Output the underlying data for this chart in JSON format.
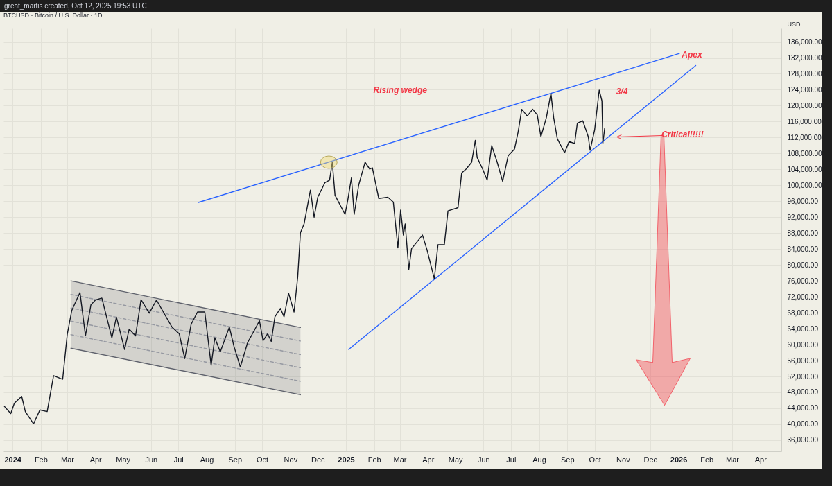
{
  "chart_data": {
    "type": "line",
    "title": "BTCUSD · Bitcoin / U.S. Dollar · 1D",
    "ylabel": "USD",
    "annotations": [
      "great_martis created, Oct 12, 2025 19:53 UTC",
      "Rising wedge",
      "3/4",
      "Apex",
      "Critical!!!!!"
    ],
    "xlim": [
      "2023-12-22",
      "2026-04-24"
    ],
    "ylim": [
      33200,
      139400
    ],
    "xticks": [
      {
        "value": "2024-01",
        "label": "2024"
      },
      {
        "value": "2024-02",
        "label": "Feb"
      },
      {
        "value": "2024-03",
        "label": "Mar"
      },
      {
        "value": "2024-04",
        "label": "Apr"
      },
      {
        "value": "2024-05",
        "label": "May"
      },
      {
        "value": "2024-06",
        "label": "Jun"
      },
      {
        "value": "2024-07",
        "label": "Jul"
      },
      {
        "value": "2024-08",
        "label": "Aug"
      },
      {
        "value": "2024-09",
        "label": "Sep"
      },
      {
        "value": "2024-10",
        "label": "Oct"
      },
      {
        "value": "2024-11",
        "label": "Nov"
      },
      {
        "value": "2024-12",
        "label": "Dec"
      },
      {
        "value": "2025-01",
        "label": "2025"
      },
      {
        "value": "2025-02",
        "label": "Feb"
      },
      {
        "value": "2025-03",
        "label": "Mar"
      },
      {
        "value": "2025-04",
        "label": "Apr"
      },
      {
        "value": "2025-05",
        "label": "May"
      },
      {
        "value": "2025-06",
        "label": "Jun"
      },
      {
        "value": "2025-07",
        "label": "Jul"
      },
      {
        "value": "2025-08",
        "label": "Aug"
      },
      {
        "value": "2025-09",
        "label": "Sep"
      },
      {
        "value": "2025-10",
        "label": "Oct"
      },
      {
        "value": "2025-11",
        "label": "Nov"
      },
      {
        "value": "2025-12",
        "label": "Dec"
      },
      {
        "value": "2026-01",
        "label": "2026"
      },
      {
        "value": "2026-02",
        "label": "Feb"
      },
      {
        "value": "2026-03",
        "label": "Mar"
      },
      {
        "value": "2026-04",
        "label": "Apr"
      }
    ],
    "yticks": [
      {
        "value": 36000,
        "label": "36,000.00"
      },
      {
        "value": 40000,
        "label": "40,000.00"
      },
      {
        "value": 44000,
        "label": "44,000.00"
      },
      {
        "value": 48000,
        "label": "48,000.00"
      },
      {
        "value": 52000,
        "label": "52,000.00"
      },
      {
        "value": 56000,
        "label": "56,000.00"
      },
      {
        "value": 60000,
        "label": "60,000.00"
      },
      {
        "value": 64000,
        "label": "64,000.00"
      },
      {
        "value": 68000,
        "label": "68,000.00"
      },
      {
        "value": 72000,
        "label": "72,000.00"
      },
      {
        "value": 76000,
        "label": "76,000.00"
      },
      {
        "value": 80000,
        "label": "80,000.00"
      },
      {
        "value": 84000,
        "label": "84,000.00"
      },
      {
        "value": 88000,
        "label": "88,000.00"
      },
      {
        "value": 92000,
        "label": "92,000.00"
      },
      {
        "value": 96000,
        "label": "96,000.00"
      },
      {
        "value": 100000,
        "label": "100,000.00"
      },
      {
        "value": 104000,
        "label": "104,000.00"
      },
      {
        "value": 108000,
        "label": "108,000.00"
      },
      {
        "value": 112000,
        "label": "112,000.00"
      },
      {
        "value": 116000,
        "label": "116,000.00"
      },
      {
        "value": 120000,
        "label": "120,000.00"
      },
      {
        "value": 124000,
        "label": "124,000.00"
      },
      {
        "value": 128000,
        "label": "128,000.00"
      },
      {
        "value": 132000,
        "label": "132,000.00"
      },
      {
        "value": 136000,
        "label": "136,000.00"
      }
    ],
    "grid": true,
    "series": [
      {
        "type": "line",
        "color": "#9598a1",
        "line_style": "dashed",
        "x": [
          "2024-03-05",
          "2024-11-12"
        ],
        "values": [
          72600,
          60900
        ]
      },
      {
        "type": "line",
        "color": "#9598a1",
        "line_style": "dashed",
        "x": [
          "2024-03-05",
          "2024-11-12"
        ],
        "values": [
          69200,
          57500
        ]
      },
      {
        "type": "line",
        "color": "#9598a1",
        "line_style": "dashed",
        "x": [
          "2024-03-05",
          "2024-11-12"
        ],
        "values": [
          65900,
          54200
        ]
      },
      {
        "type": "line",
        "color": "#9598a1",
        "line_style": "dashed",
        "x": [
          "2024-03-05",
          "2024-11-12"
        ],
        "values": [
          62500,
          50800
        ]
      },
      {
        "type": "line",
        "color": "#5d606b",
        "x": [
          "2024-03-05",
          "2024-11-12"
        ],
        "values": [
          76000,
          64300
        ],
        "lower": [
          59100,
          47400
        ],
        "upper": [
          76000,
          64300
        ]
      },
      {
        "type": "line",
        "color": "#5d606b",
        "x": [
          "2024-03-05",
          "2024-11-12"
        ],
        "values": [
          59100,
          47400
        ]
      },
      {
        "type": "line",
        "color": "#2962ff",
        "x": [
          "2024-07-23",
          "2026-01-02"
        ],
        "values": [
          95700,
          133100
        ]
      },
      {
        "type": "line",
        "color": "#2962ff",
        "x": [
          "2025-01-04",
          "2026-01-20"
        ],
        "values": [
          58800,
          130100
        ]
      },
      {
        "type": "line",
        "color": "#131722",
        "x": [
          "2023-12-23",
          "2023-12-30",
          "2024-01-03",
          "2024-01-11",
          "2024-01-15",
          "2024-01-24",
          "2024-01-31",
          "2024-02-08",
          "2024-02-15",
          "2024-02-25",
          "2024-03-01",
          "2024-03-06",
          "2024-03-15",
          "2024-03-21",
          "2024-03-27",
          "2024-04-01",
          "2024-04-08",
          "2024-04-19",
          "2024-04-24",
          "2024-05-03",
          "2024-05-08",
          "2024-05-15",
          "2024-05-21",
          "2024-05-30",
          "2024-06-07",
          "2024-06-24",
          "2024-07-02",
          "2024-07-08",
          "2024-07-15",
          "2024-07-22",
          "2024-07-30",
          "2024-08-06",
          "2024-08-10",
          "2024-08-16",
          "2024-08-26",
          "2024-08-31",
          "2024-09-07",
          "2024-09-15",
          "2024-09-22",
          "2024-09-28",
          "2024-10-02",
          "2024-10-07",
          "2024-10-11",
          "2024-10-15",
          "2024-10-21",
          "2024-10-25",
          "2024-10-30",
          "2024-11-05",
          "2024-11-09",
          "2024-11-12",
          "2024-11-16",
          "2024-11-23",
          "2024-11-27",
          "2024-12-01",
          "2024-12-09",
          "2024-12-14",
          "2024-12-17",
          "2024-12-20",
          "2024-12-31",
          "2025-01-03",
          "2025-01-07",
          "2025-01-10",
          "2025-01-15",
          "2025-01-22",
          "2025-01-27",
          "2025-01-30",
          "2025-02-06",
          "2025-02-16",
          "2025-02-22",
          "2025-02-27",
          "2025-03-02",
          "2025-03-05",
          "2025-03-07",
          "2025-03-11",
          "2025-03-14",
          "2025-03-26",
          "2025-03-31",
          "2025-04-08",
          "2025-04-12",
          "2025-04-19",
          "2025-04-23",
          "2025-05-04",
          "2025-05-08",
          "2025-05-13",
          "2025-05-19",
          "2025-05-23",
          "2025-05-25",
          "2025-05-31",
          "2025-06-05",
          "2025-06-10",
          "2025-06-16",
          "2025-06-22",
          "2025-06-28",
          "2025-07-05",
          "2025-07-09",
          "2025-07-13",
          "2025-07-19",
          "2025-07-25",
          "2025-07-30",
          "2025-08-03",
          "2025-08-09",
          "2025-08-14",
          "2025-08-17",
          "2025-08-21",
          "2025-08-29",
          "2025-09-03",
          "2025-09-09",
          "2025-09-12",
          "2025-09-18",
          "2025-09-24",
          "2025-09-26",
          "2025-10-01",
          "2025-10-06",
          "2025-10-09",
          "2025-10-10",
          "2025-10-12"
        ],
        "values": [
          44500,
          42700,
          45300,
          47000,
          43200,
          40100,
          43600,
          43200,
          52200,
          51300,
          62500,
          68600,
          73100,
          62200,
          70000,
          71200,
          71700,
          61700,
          66900,
          58800,
          63900,
          62200,
          71300,
          67900,
          71200,
          64400,
          62700,
          56500,
          65100,
          68200,
          68200,
          54800,
          61700,
          58200,
          64400,
          59600,
          54400,
          60500,
          63400,
          66000,
          61000,
          62700,
          60800,
          67000,
          69100,
          67000,
          72900,
          68200,
          76900,
          88100,
          90300,
          98800,
          92000,
          97000,
          100700,
          101300,
          105800,
          97500,
          92700,
          96300,
          101900,
          92700,
          100100,
          105800,
          104100,
          104400,
          96700,
          97000,
          95800,
          84300,
          93800,
          87500,
          90300,
          78900,
          84100,
          87500,
          83800,
          76500,
          85100,
          85100,
          93600,
          94400,
          103100,
          104100,
          105800,
          111300,
          107000,
          104100,
          101300,
          110000,
          105800,
          101000,
          107400,
          109100,
          113400,
          119100,
          117400,
          119100,
          117700,
          112200,
          117000,
          123100,
          117000,
          111700,
          108200,
          111000,
          110500,
          115600,
          116200,
          112200,
          108800,
          113900,
          123900,
          121200,
          110500,
          114300
        ]
      }
    ]
  }
}
